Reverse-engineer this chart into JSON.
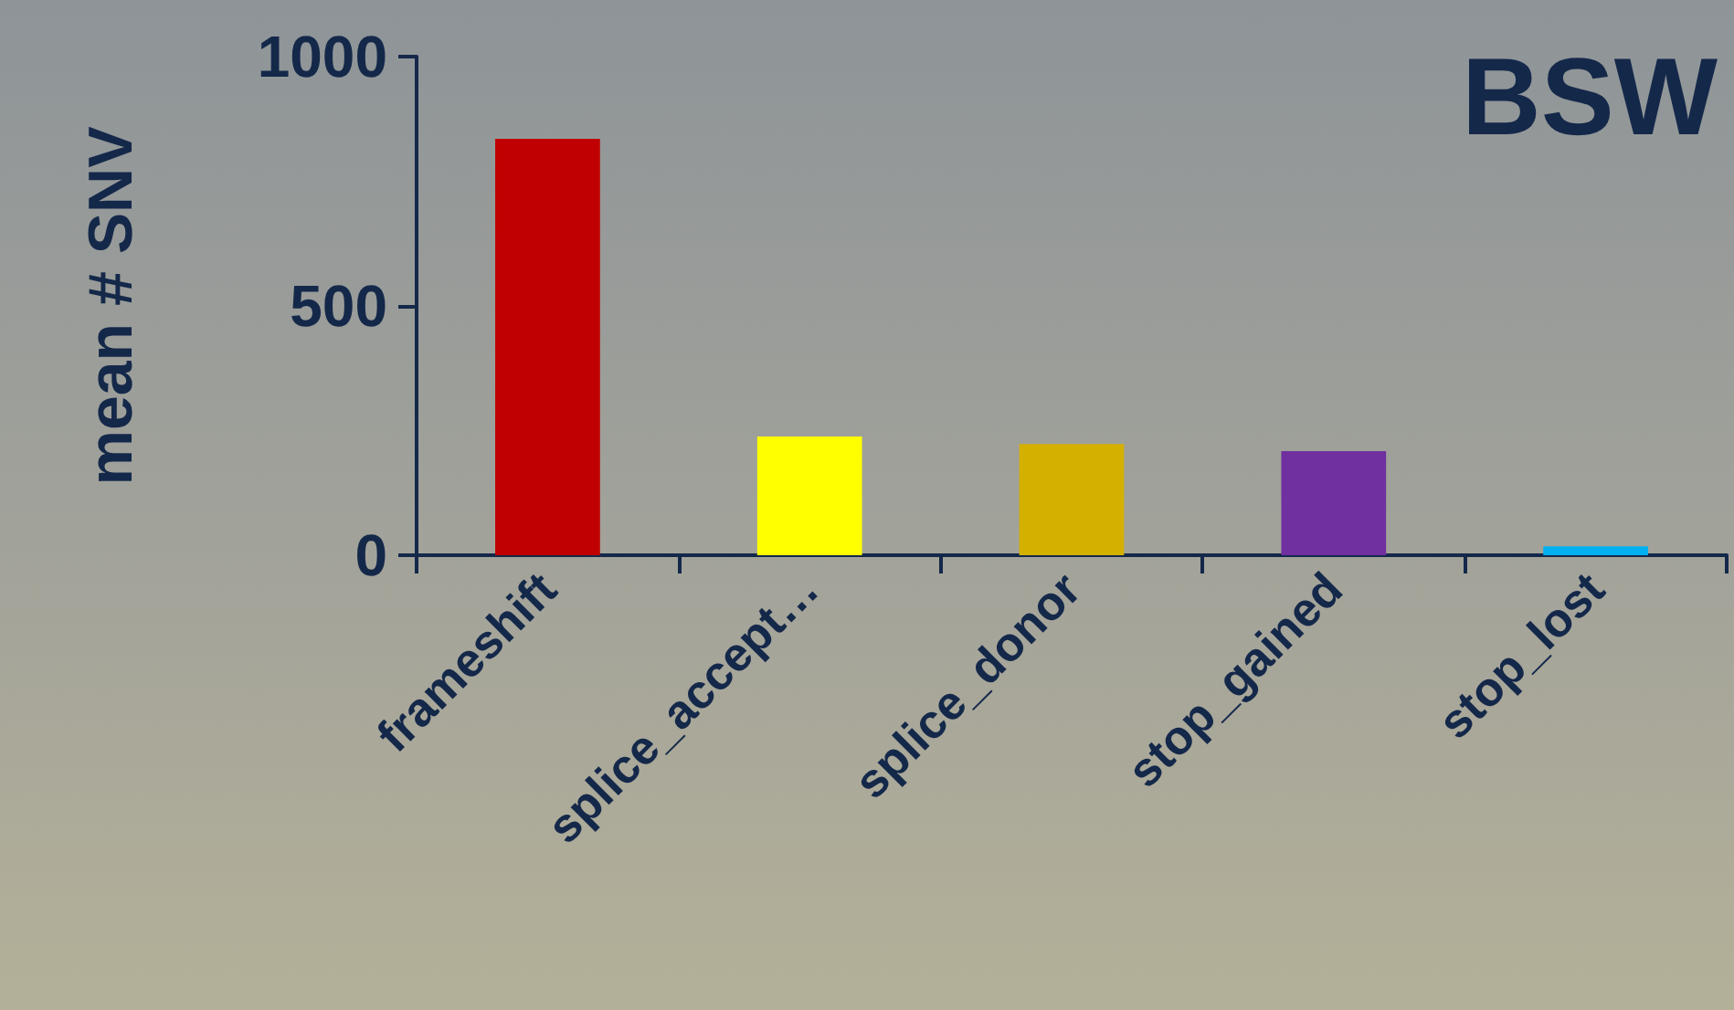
{
  "chart_data": {
    "type": "bar",
    "title": "BSW",
    "ylabel": "mean # SNV",
    "categories": [
      "frameshift",
      "splice_accept…",
      "splice_donor",
      "stop_gained",
      "stop_lost"
    ],
    "values": [
      835,
      238,
      223,
      209,
      18
    ],
    "colors": [
      "#c00000",
      "#ffff00",
      "#d4b000",
      "#7030a0",
      "#00b0f0"
    ],
    "ylim": [
      0,
      1000
    ],
    "yticks": [
      0,
      500,
      1000
    ],
    "grid": false
  }
}
